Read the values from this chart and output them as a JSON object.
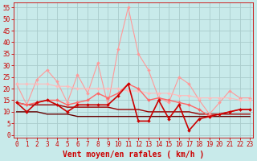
{
  "background_color": "#c8eaea",
  "grid_color": "#aacccc",
  "xlabel": "Vent moyen/en rafales ( km/h )",
  "xlabel_color": "#cc0000",
  "xlabel_fontsize": 7,
  "yticks": [
    0,
    5,
    10,
    15,
    20,
    25,
    30,
    35,
    40,
    45,
    50,
    55
  ],
  "xticks": [
    0,
    1,
    2,
    3,
    4,
    5,
    6,
    7,
    8,
    9,
    10,
    11,
    12,
    13,
    14,
    15,
    16,
    17,
    18,
    19,
    20,
    21,
    22,
    23
  ],
  "ylim": [
    -1,
    57
  ],
  "xlim": [
    -0.3,
    23.3
  ],
  "series": [
    {
      "name": "rafales_light1",
      "color": "#ff9999",
      "linewidth": 0.8,
      "marker": "D",
      "markersize": 2.0,
      "data": [
        22,
        13,
        24,
        28,
        23,
        14,
        26,
        18,
        31,
        13,
        37,
        55,
        35,
        28,
        16,
        14,
        25,
        22,
        15,
        9,
        14,
        19,
        16,
        16
      ]
    },
    {
      "name": "rafales_light2",
      "color": "#ffbbbb",
      "linewidth": 0.8,
      "marker": "D",
      "markersize": 2.0,
      "data": [
        22,
        22,
        22,
        22,
        21,
        21,
        20,
        20,
        20,
        20,
        20,
        19,
        19,
        18,
        18,
        18,
        17,
        17,
        16,
        16,
        16,
        16,
        15,
        15
      ]
    },
    {
      "name": "vent_moyen_bright",
      "color": "#ff6666",
      "linewidth": 1.0,
      "marker": "D",
      "markersize": 2.0,
      "data": [
        14,
        13,
        14,
        15,
        15,
        13,
        14,
        15,
        18,
        16,
        18,
        22,
        20,
        15,
        16,
        15,
        14,
        13,
        11,
        8,
        9,
        10,
        11,
        11
      ]
    },
    {
      "name": "vent_moyen_dark",
      "color": "#cc0000",
      "linewidth": 1.2,
      "marker": "D",
      "markersize": 2.0,
      "data": [
        14,
        10,
        14,
        15,
        13,
        10,
        13,
        13,
        13,
        13,
        17,
        22,
        6,
        6,
        15,
        7,
        13,
        2,
        7,
        8,
        9,
        10,
        11,
        11
      ]
    },
    {
      "name": "vent_min_line1",
      "color": "#990000",
      "linewidth": 1.0,
      "marker": null,
      "markersize": 0,
      "data": [
        14,
        13,
        13,
        13,
        13,
        12,
        12,
        12,
        12,
        12,
        11,
        11,
        11,
        10,
        10,
        10,
        10,
        10,
        9,
        9,
        9,
        9,
        9,
        9
      ]
    },
    {
      "name": "vent_min_line2",
      "color": "#660000",
      "linewidth": 1.0,
      "marker": null,
      "markersize": 0,
      "data": [
        10,
        10,
        10,
        9,
        9,
        9,
        8,
        8,
        8,
        8,
        8,
        8,
        8,
        8,
        8,
        8,
        8,
        8,
        8,
        8,
        8,
        8,
        8,
        8
      ]
    }
  ],
  "tick_arrow_color": "#cc0000",
  "tick_fontsize": 5.5,
  "ytick_fontsize": 5.5
}
